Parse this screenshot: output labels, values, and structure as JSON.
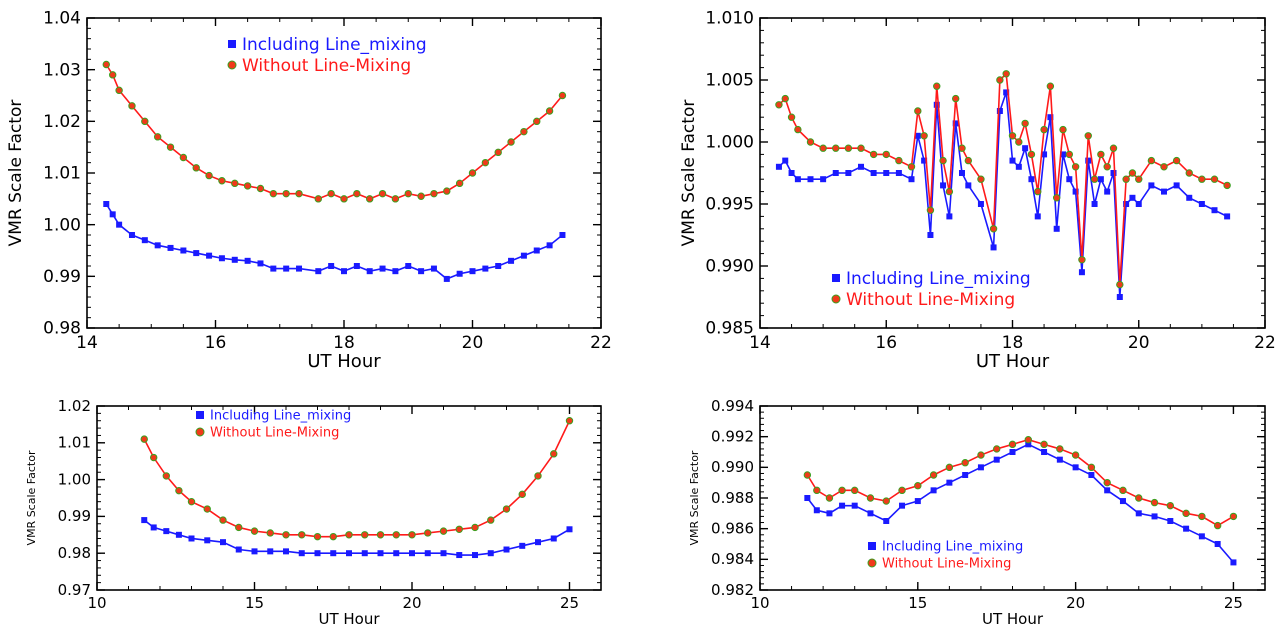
{
  "colors": {
    "included": "#1a1aff",
    "without_line": "#ff1a1a",
    "without_marker": "#f03a1a",
    "without_marker_edge": "#3aa020"
  },
  "chart_data": [
    {
      "type": "scatter",
      "xlabel": "UT Hour",
      "ylabel": "VMR Scale Factor",
      "xlim": [
        14,
        22
      ],
      "ylim": [
        0.98,
        1.04
      ],
      "xticks": [
        "14",
        "16",
        "18",
        "20",
        "22"
      ],
      "yticks": [
        "0.98",
        "0.99",
        "1.00",
        "1.01",
        "1.02",
        "1.03",
        "1.04"
      ],
      "legend_position": "top-center",
      "series": [
        {
          "name": "Including Line_mixing",
          "x": [
            14.3,
            14.4,
            14.5,
            14.7,
            14.9,
            15.1,
            15.3,
            15.5,
            15.7,
            15.9,
            16.1,
            16.3,
            16.5,
            16.7,
            16.9,
            17.1,
            17.3,
            17.6,
            17.8,
            18.0,
            18.2,
            18.4,
            18.6,
            18.8,
            19.0,
            19.2,
            19.4,
            19.6,
            19.8,
            20.0,
            20.2,
            20.4,
            20.6,
            20.8,
            21.0,
            21.2,
            21.4
          ],
          "y": [
            1.004,
            1.002,
            1.0,
            0.998,
            0.997,
            0.996,
            0.9955,
            0.995,
            0.9945,
            0.994,
            0.9935,
            0.9932,
            0.993,
            0.9925,
            0.9915,
            0.9915,
            0.9915,
            0.991,
            0.992,
            0.991,
            0.992,
            0.991,
            0.9915,
            0.991,
            0.992,
            0.991,
            0.9915,
            0.9895,
            0.9905,
            0.991,
            0.9915,
            0.992,
            0.993,
            0.994,
            0.995,
            0.996,
            0.998
          ]
        },
        {
          "name": "Without Line-Mixing",
          "x": [
            14.3,
            14.4,
            14.5,
            14.7,
            14.9,
            15.1,
            15.3,
            15.5,
            15.7,
            15.9,
            16.1,
            16.3,
            16.5,
            16.7,
            16.9,
            17.1,
            17.3,
            17.6,
            17.8,
            18.0,
            18.2,
            18.4,
            18.6,
            18.8,
            19.0,
            19.2,
            19.4,
            19.6,
            19.8,
            20.0,
            20.2,
            20.4,
            20.6,
            20.8,
            21.0,
            21.2,
            21.4
          ],
          "y": [
            1.031,
            1.029,
            1.026,
            1.023,
            1.02,
            1.017,
            1.015,
            1.013,
            1.011,
            1.0095,
            1.0085,
            1.008,
            1.0075,
            1.007,
            1.006,
            1.006,
            1.006,
            1.005,
            1.006,
            1.005,
            1.006,
            1.005,
            1.006,
            1.005,
            1.006,
            1.0055,
            1.006,
            1.0065,
            1.008,
            1.01,
            1.012,
            1.014,
            1.016,
            1.018,
            1.02,
            1.022,
            1.025
          ]
        }
      ]
    },
    {
      "type": "scatter",
      "xlabel": "UT Hour",
      "ylabel": "VMR Scale Factor",
      "xlim": [
        14,
        22
      ],
      "ylim": [
        0.985,
        1.01
      ],
      "xticks": [
        "14",
        "16",
        "18",
        "20",
        "22"
      ],
      "yticks": [
        "0.985",
        "0.990",
        "0.995",
        "1.000",
        "1.005",
        "1.010"
      ],
      "legend_position": "bottom-center",
      "series": [
        {
          "name": "Including Line_mixing",
          "x": [
            14.3,
            14.4,
            14.5,
            14.6,
            14.8,
            15.0,
            15.2,
            15.4,
            15.6,
            15.8,
            16.0,
            16.2,
            16.4,
            16.5,
            16.6,
            16.7,
            16.8,
            16.9,
            17.0,
            17.1,
            17.2,
            17.3,
            17.5,
            17.7,
            17.8,
            17.9,
            18.0,
            18.1,
            18.2,
            18.3,
            18.4,
            18.5,
            18.6,
            18.7,
            18.8,
            18.9,
            19.0,
            19.1,
            19.2,
            19.3,
            19.4,
            19.5,
            19.6,
            19.7,
            19.8,
            19.9,
            20.0,
            20.2,
            20.4,
            20.6,
            20.8,
            21.0,
            21.2,
            21.4
          ],
          "y": [
            0.998,
            0.9985,
            0.9975,
            0.997,
            0.997,
            0.997,
            0.9975,
            0.9975,
            0.998,
            0.9975,
            0.9975,
            0.9975,
            0.997,
            1.0005,
            0.9985,
            0.9925,
            1.003,
            0.9965,
            0.994,
            1.0015,
            0.9975,
            0.9965,
            0.995,
            0.9915,
            1.0025,
            1.004,
            0.9985,
            0.998,
            0.9995,
            0.997,
            0.994,
            0.999,
            1.002,
            0.993,
            0.999,
            0.997,
            0.996,
            0.9895,
            0.9985,
            0.995,
            0.997,
            0.996,
            0.9975,
            0.9875,
            0.995,
            0.9955,
            0.995,
            0.9965,
            0.996,
            0.9965,
            0.9955,
            0.995,
            0.9945,
            0.994
          ]
        },
        {
          "name": "Without Line-Mixing",
          "x": [
            14.3,
            14.4,
            14.5,
            14.6,
            14.8,
            15.0,
            15.2,
            15.4,
            15.6,
            15.8,
            16.0,
            16.2,
            16.4,
            16.5,
            16.6,
            16.7,
            16.8,
            16.9,
            17.0,
            17.1,
            17.2,
            17.3,
            17.5,
            17.7,
            17.8,
            17.9,
            18.0,
            18.1,
            18.2,
            18.3,
            18.4,
            18.5,
            18.6,
            18.7,
            18.8,
            18.9,
            19.0,
            19.1,
            19.2,
            19.3,
            19.4,
            19.5,
            19.6,
            19.7,
            19.8,
            19.9,
            20.0,
            20.2,
            20.4,
            20.6,
            20.8,
            21.0,
            21.2,
            21.4
          ],
          "y": [
            1.003,
            1.0035,
            1.002,
            1.001,
            1.0,
            0.9995,
            0.9995,
            0.9995,
            0.9995,
            0.999,
            0.999,
            0.9985,
            0.998,
            1.0025,
            1.0005,
            0.9945,
            1.0045,
            0.9985,
            0.996,
            1.0035,
            0.9995,
            0.9985,
            0.997,
            0.993,
            1.005,
            1.0055,
            1.0005,
            1.0,
            1.0015,
            0.999,
            0.996,
            1.001,
            1.0045,
            0.9955,
            1.001,
            0.999,
            0.998,
            0.9905,
            1.0005,
            0.997,
            0.999,
            0.998,
            0.9995,
            0.9885,
            0.997,
            0.9975,
            0.997,
            0.9985,
            0.998,
            0.9985,
            0.9975,
            0.997,
            0.997,
            0.9965
          ]
        }
      ]
    },
    {
      "type": "scatter",
      "xlabel": "UT Hour",
      "ylabel": "VMR Scale Factor",
      "xlim": [
        10,
        26
      ],
      "ylim": [
        0.97,
        1.02
      ],
      "xticks": [
        "10",
        "15",
        "20",
        "25"
      ],
      "yticks": [
        "0.97",
        "0.98",
        "0.99",
        "1.00",
        "1.01",
        "1.02"
      ],
      "legend_position": "top-center",
      "series": [
        {
          "name": "Including Line_mixing",
          "x": [
            11.5,
            11.8,
            12.2,
            12.6,
            13.0,
            13.5,
            14.0,
            14.5,
            15.0,
            15.5,
            16.0,
            16.5,
            17.0,
            17.5,
            18.0,
            18.5,
            19.0,
            19.5,
            20.0,
            20.5,
            21.0,
            21.5,
            22.0,
            22.5,
            23.0,
            23.5,
            24.0,
            24.5,
            25.0
          ],
          "y": [
            0.989,
            0.987,
            0.986,
            0.985,
            0.984,
            0.9835,
            0.983,
            0.981,
            0.9805,
            0.9805,
            0.9805,
            0.98,
            0.98,
            0.98,
            0.98,
            0.98,
            0.98,
            0.98,
            0.98,
            0.98,
            0.98,
            0.9795,
            0.9795,
            0.98,
            0.981,
            0.982,
            0.983,
            0.984,
            0.9865
          ]
        },
        {
          "name": "Without Line-Mixing",
          "x": [
            11.5,
            11.8,
            12.2,
            12.6,
            13.0,
            13.5,
            14.0,
            14.5,
            15.0,
            15.5,
            16.0,
            16.5,
            17.0,
            17.5,
            18.0,
            18.5,
            19.0,
            19.5,
            20.0,
            20.5,
            21.0,
            21.5,
            22.0,
            22.5,
            23.0,
            23.5,
            24.0,
            24.5,
            25.0
          ],
          "y": [
            1.011,
            1.006,
            1.001,
            0.997,
            0.994,
            0.992,
            0.989,
            0.987,
            0.986,
            0.9855,
            0.985,
            0.985,
            0.9845,
            0.9845,
            0.985,
            0.985,
            0.985,
            0.985,
            0.985,
            0.9855,
            0.986,
            0.9865,
            0.987,
            0.989,
            0.992,
            0.996,
            1.001,
            1.007,
            1.016
          ]
        }
      ]
    },
    {
      "type": "scatter",
      "xlabel": "UT Hour",
      "ylabel": "VMR Scale Factor",
      "xlim": [
        10,
        26
      ],
      "ylim": [
        0.982,
        0.994
      ],
      "xticks": [
        "10",
        "15",
        "20",
        "25"
      ],
      "yticks": [
        "0.982",
        "0.984",
        "0.986",
        "0.988",
        "0.990",
        "0.992",
        "0.994"
      ],
      "legend_position": "bottom-center",
      "series": [
        {
          "name": "Including Line_mixing",
          "x": [
            11.5,
            11.8,
            12.2,
            12.6,
            13.0,
            13.5,
            14.0,
            14.5,
            15.0,
            15.5,
            16.0,
            16.5,
            17.0,
            17.5,
            18.0,
            18.5,
            19.0,
            19.5,
            20.0,
            20.5,
            21.0,
            21.5,
            22.0,
            22.5,
            23.0,
            23.5,
            24.0,
            24.5,
            25.0
          ],
          "y": [
            0.988,
            0.9872,
            0.987,
            0.9875,
            0.9875,
            0.987,
            0.9865,
            0.9875,
            0.9878,
            0.9885,
            0.989,
            0.9895,
            0.99,
            0.9905,
            0.991,
            0.9915,
            0.991,
            0.9905,
            0.99,
            0.9895,
            0.9885,
            0.9878,
            0.987,
            0.9868,
            0.9865,
            0.986,
            0.9855,
            0.985,
            0.9838
          ]
        },
        {
          "name": "Without Line-Mixing",
          "x": [
            11.5,
            11.8,
            12.2,
            12.6,
            13.0,
            13.5,
            14.0,
            14.5,
            15.0,
            15.5,
            16.0,
            16.5,
            17.0,
            17.5,
            18.0,
            18.5,
            19.0,
            19.5,
            20.0,
            20.5,
            21.0,
            21.5,
            22.0,
            22.5,
            23.0,
            23.5,
            24.0,
            24.5,
            25.0
          ],
          "y": [
            0.9895,
            0.9885,
            0.988,
            0.9885,
            0.9885,
            0.988,
            0.9878,
            0.9885,
            0.9888,
            0.9895,
            0.99,
            0.9903,
            0.9908,
            0.9912,
            0.9915,
            0.9918,
            0.9915,
            0.9912,
            0.9908,
            0.99,
            0.989,
            0.9885,
            0.988,
            0.9877,
            0.9875,
            0.987,
            0.9868,
            0.9862,
            0.9868
          ]
        }
      ]
    }
  ]
}
